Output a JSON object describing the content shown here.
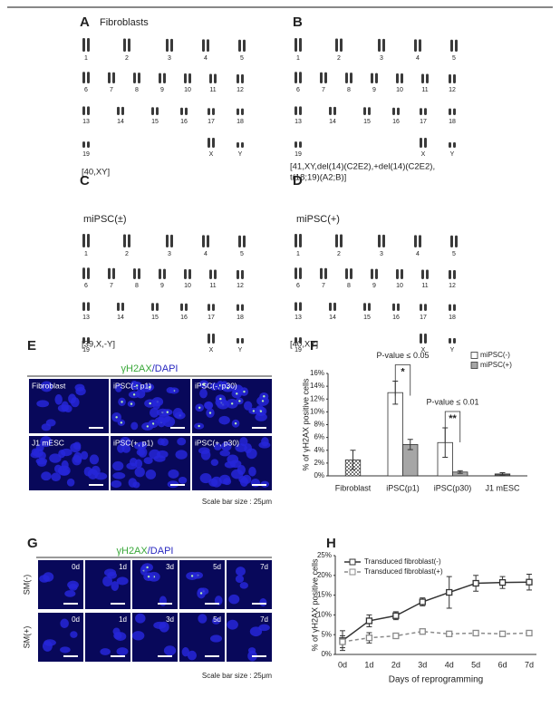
{
  "figure": {
    "letters": [
      "A",
      "B",
      "C",
      "D",
      "E",
      "F",
      "G",
      "H"
    ],
    "karyotype": {
      "chromosome_labels": [
        "1",
        "2",
        "3",
        "4",
        "5",
        "6",
        "7",
        "8",
        "9",
        "10",
        "11",
        "12",
        "13",
        "14",
        "15",
        "16",
        "17",
        "18",
        "19",
        "X",
        "Y"
      ],
      "panels": [
        {
          "title": "Fibroblasts",
          "caption": [
            "[40,XY]"
          ]
        },
        {
          "caption": [
            "[41,XY,del(14)(C2E2),+del(14)(C2E2),",
            "t(18;19)(A2;B)]"
          ]
        },
        {
          "title": "miPSC(±)",
          "caption": [
            "[39,X,-Y]"
          ]
        },
        {
          "title": "miPSC(+)",
          "caption": [
            "[40,XY]"
          ]
        }
      ]
    },
    "microscopy_e": {
      "stain": [
        "γH2AX",
        "/DAPI"
      ],
      "labels": [
        "Fibroblast",
        "iPSC(-, p1)",
        "iPSC(-, p30)",
        "J1 mESC",
        "iPSC(+, p1)",
        "iPSC(+, p30)"
      ],
      "scale": "Scale bar size : 25μm"
    },
    "microscopy_g": {
      "stain": [
        "γH2AX",
        "/DAPI"
      ],
      "days": [
        "0d",
        "1d",
        "3d",
        "5d",
        "7d"
      ],
      "rows": [
        "SM(-)",
        "SM(+)"
      ],
      "scale": "Scale bar size : 25μm"
    }
  },
  "chart_data": [
    {
      "type": "bar",
      "y_label": "% of γH2AX positive cells",
      "categories": [
        "Fibroblast",
        "iPSC(p1)",
        "iPSC(p30)",
        "J1 mESC"
      ],
      "series": [
        {
          "name": "miPSC(-)",
          "color": "#ffffff",
          "values": [
            2.5,
            13,
            5.2,
            0.3
          ],
          "errors": [
            1.5,
            1.8,
            2.3,
            0.2
          ],
          "hatch": [
            true,
            false,
            false,
            false
          ]
        },
        {
          "name": "miPSC(+)",
          "color": "#a6a6a6",
          "values": [
            null,
            4.9,
            0.6,
            null
          ],
          "errors": [
            null,
            0.8,
            0.2,
            null
          ]
        }
      ],
      "ylim": [
        0,
        16
      ],
      "yticks": [
        {
          "value": 0,
          "label": "0%"
        },
        {
          "value": 2,
          "label": "2%"
        },
        {
          "value": 4,
          "label": "4%"
        },
        {
          "value": 6,
          "label": "6%"
        },
        {
          "value": 8,
          "label": "8%"
        },
        {
          "value": 10,
          "label": "10%"
        },
        {
          "value": 12,
          "label": "12%"
        },
        {
          "value": 14,
          "label": "14%"
        },
        {
          "value": 16,
          "label": "16%"
        }
      ],
      "annotations": [
        {
          "text": "P-value ≤ 0.05",
          "mark": "*"
        },
        {
          "text": "P-value ≤ 0.01",
          "mark": "**"
        }
      ],
      "legend": "upper-right"
    },
    {
      "type": "line",
      "x_label": "Days of reprogramming",
      "y_label": "% of γH2AX positive cells",
      "categories": [
        "0d",
        "1d",
        "2d",
        "3d",
        "4d",
        "5d",
        "6d",
        "7d"
      ],
      "series": [
        {
          "name": "Transduced fibroblast(-)",
          "color": "#333333",
          "dashed": false,
          "values": [
            3.5,
            8.5,
            9.8,
            13.3,
            15.7,
            18,
            18.2,
            18.3
          ],
          "errors": [
            2.5,
            1.5,
            1,
            1,
            4,
            2,
            1.5,
            2
          ]
        },
        {
          "name": "Transduced fibroblast(+)",
          "color": "#8a8a8a",
          "dashed": true,
          "values": [
            3.2,
            4.2,
            4.7,
            5.8,
            5.2,
            5.4,
            5.2,
            5.4
          ],
          "errors": [
            1.5,
            1.3,
            0.3,
            0.3,
            0.3,
            0.3,
            0.3,
            0.3
          ]
        }
      ],
      "ylim": [
        0,
        25
      ],
      "yticks": [
        {
          "value": 0,
          "label": "0%"
        },
        {
          "value": 5,
          "label": "5%"
        },
        {
          "value": 10,
          "label": "10%"
        },
        {
          "value": 15,
          "label": "15%"
        },
        {
          "value": 20,
          "label": "20%"
        },
        {
          "value": 25,
          "label": "25%"
        }
      ],
      "legend": "upper-left"
    }
  ]
}
